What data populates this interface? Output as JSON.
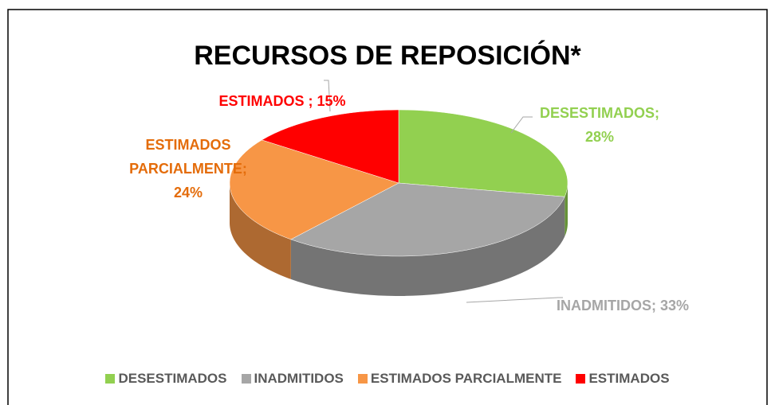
{
  "chart_data": {
    "type": "pie3d",
    "title": "RECURSOS DE REPOSICIÓN*",
    "categories": [
      "DESESTIMADOS",
      "INADMITIDOS",
      "ESTIMADOS PARCIALMENTE",
      "ESTIMADOS"
    ],
    "values": [
      28,
      33,
      24,
      15
    ],
    "value_labels": [
      "DESESTIMADOS; 28%",
      "INADMITIDOS; 33%",
      "ESTIMADOS PARCIALMENTE; 24%",
      "ESTIMADOS ; 15%"
    ],
    "colors": [
      "#92d050",
      "#a6a6a6",
      "#f79646",
      "#ff0000"
    ],
    "label_colors": [
      "#92d050",
      "#a6a6a6",
      "#e46c0a",
      "#ff0000"
    ],
    "legend": "bottom"
  }
}
